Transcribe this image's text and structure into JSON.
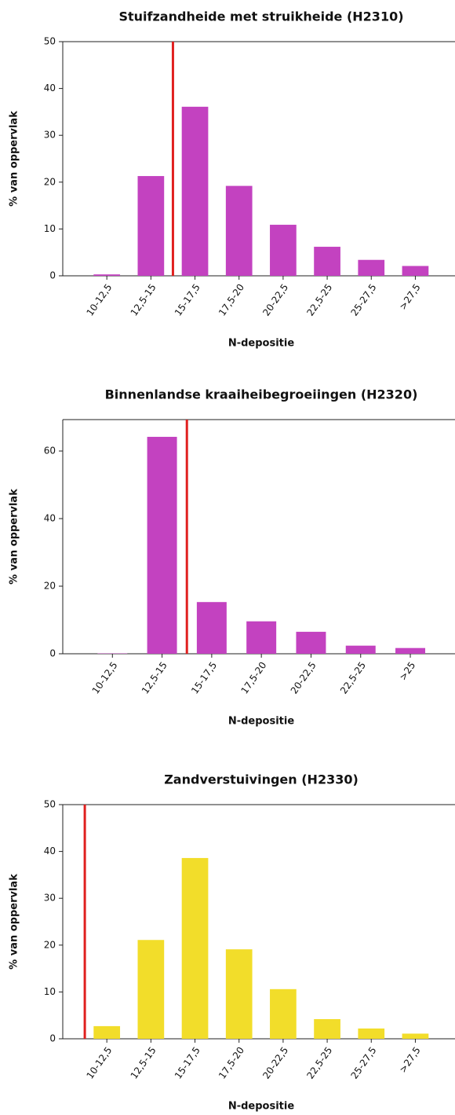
{
  "chart_data": [
    {
      "type": "bar",
      "title": "Stuifzandheide met struikheide (H2310)",
      "x_label": "N-depositie",
      "y_label": "% van oppervlak",
      "categories": [
        "10-12,5",
        "12,5-15",
        "15-17,5",
        "17,5-20",
        "20-22,5",
        "22,5-25",
        "25-27,5",
        ">27,5"
      ],
      "values": [
        0.3,
        21.3,
        36.1,
        19.2,
        10.9,
        6.2,
        3.4,
        2.1
      ],
      "color": "#c342c0",
      "xlim": [
        8.75,
        31
      ],
      "ylim": [
        0,
        50
      ],
      "yticks": [
        0,
        10,
        20,
        30,
        40,
        50
      ],
      "reference_line": {
        "value": 15,
        "color": "#e0201f"
      }
    },
    {
      "type": "bar",
      "title": "Binnenlandse kraaiheibegroeiingen (H2320)",
      "x_label": "N-depositie",
      "y_label": "% van oppervlak",
      "categories": [
        "10-12,5",
        "12,5-15",
        "15-17,5",
        "17,5-20",
        "20-22,5",
        "22,5-25",
        ">25"
      ],
      "values": [
        0.1,
        64.2,
        15.3,
        9.6,
        6.5,
        2.4,
        1.7
      ],
      "color": "#c342c0",
      "xlim": [
        8.75,
        28.5
      ],
      "ylim": [
        0,
        69.3
      ],
      "yticks": [
        0,
        20,
        40,
        60
      ],
      "reference_line": {
        "value": 15,
        "color": "#e0201f"
      }
    },
    {
      "type": "bar",
      "title": "Zandverstuivingen (H2330)",
      "x_label": "N-depositie",
      "y_label": "% van oppervlak",
      "categories": [
        "10-12,5",
        "12,5-15",
        "15-17,5",
        "17,5-20",
        "20-22,5",
        "22,5-25",
        "25-27,5",
        ">27,5"
      ],
      "values": [
        2.7,
        21.1,
        38.6,
        19.1,
        10.6,
        4.2,
        2.2,
        1.1
      ],
      "color": "#f2dd2a",
      "xlim": [
        8.75,
        31
      ],
      "ylim": [
        0,
        50
      ],
      "yticks": [
        0,
        10,
        20,
        30,
        40,
        50
      ],
      "reference_line": {
        "value": 10,
        "color": "#e0201f"
      }
    }
  ]
}
